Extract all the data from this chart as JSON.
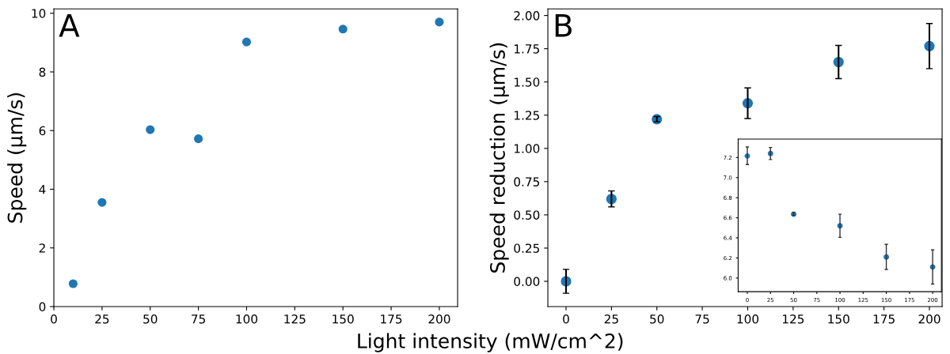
{
  "chart_data": [
    {
      "type": "scatter",
      "title": "A",
      "xlabel": "Light intensity (mW/cm^2)",
      "ylabel": "Speed (µm/s)",
      "marker": "circle",
      "grid": false,
      "x": [
        10,
        25,
        50,
        75,
        100,
        150,
        200
      ],
      "series": [
        {
          "color": "#1f77b4",
          "values": [
            0.78,
            3.55,
            6.03,
            5.72,
            9.02,
            9.46,
            9.7
          ]
        }
      ],
      "xlim": [
        0,
        209.5
      ],
      "ylim": [
        0,
        10.15
      ],
      "xticks": [
        0,
        25,
        50,
        75,
        100,
        125,
        150,
        175,
        200
      ],
      "yticks": [
        0,
        2,
        4,
        6,
        8,
        10
      ]
    },
    {
      "type": "scatter",
      "title": "B",
      "ylabel": "Speed reduction (µm/s)",
      "marker": "circle",
      "grid": false,
      "x": [
        0,
        25,
        50,
        100,
        150,
        200
      ],
      "series": [
        {
          "color": "#1f77b4",
          "values": [
            0.0,
            0.62,
            1.22,
            1.34,
            1.65,
            1.77
          ],
          "errors": [
            0.09,
            0.06,
            0.02,
            0.115,
            0.125,
            0.17
          ]
        }
      ],
      "xlim": [
        -10,
        207
      ],
      "ylim": [
        -0.19,
        2.05
      ],
      "xticks": [
        0,
        25,
        50,
        75,
        100,
        125,
        150,
        175,
        200
      ],
      "yticks": [
        {
          "value": 0,
          "label": "0.00"
        },
        {
          "value": 0.25,
          "label": "0.25"
        },
        {
          "value": 0.5,
          "label": "0.50"
        },
        {
          "value": 0.75,
          "label": "0.75"
        },
        {
          "value": 1,
          "label": "1.00"
        },
        {
          "value": 1.25,
          "label": "1.25"
        },
        {
          "value": 1.5,
          "label": "1.50"
        },
        {
          "value": 1.75,
          "label": "1.75"
        },
        {
          "value": 2,
          "label": "2.00"
        }
      ]
    },
    {
      "type": "scatter",
      "marker": "circle",
      "grid": false,
      "x": [
        0,
        25,
        50,
        100,
        150,
        200
      ],
      "series": [
        {
          "color": "#1f77b4",
          "values": [
            7.215,
            7.24,
            6.635,
            6.52,
            6.21,
            6.11
          ],
          "errors": [
            [
              7.13,
              7.305
            ],
            [
              7.18,
              7.3
            ],
            [
              6.625,
              6.655
            ],
            [
              6.405,
              6.635
            ],
            [
              6.085,
              6.335
            ],
            [
              5.94,
              6.28
            ]
          ]
        }
      ],
      "xlim": [
        -9.9,
        209.5
      ],
      "ylim": [
        5.864,
        7.383
      ],
      "xticks": [
        0,
        25,
        50,
        75,
        100,
        125,
        150,
        175,
        200
      ],
      "yticks": [
        {
          "value": 6.0,
          "label": "6.0"
        },
        {
          "value": 6.2,
          "label": "6.2"
        },
        {
          "value": 6.4,
          "label": "6.4"
        },
        {
          "value": 6.6,
          "label": "6.6"
        },
        {
          "value": 6.8,
          "label": "6.8"
        },
        {
          "value": 7.0,
          "label": "7.0"
        },
        {
          "value": 7.2,
          "label": "7.2"
        }
      ]
    }
  ]
}
